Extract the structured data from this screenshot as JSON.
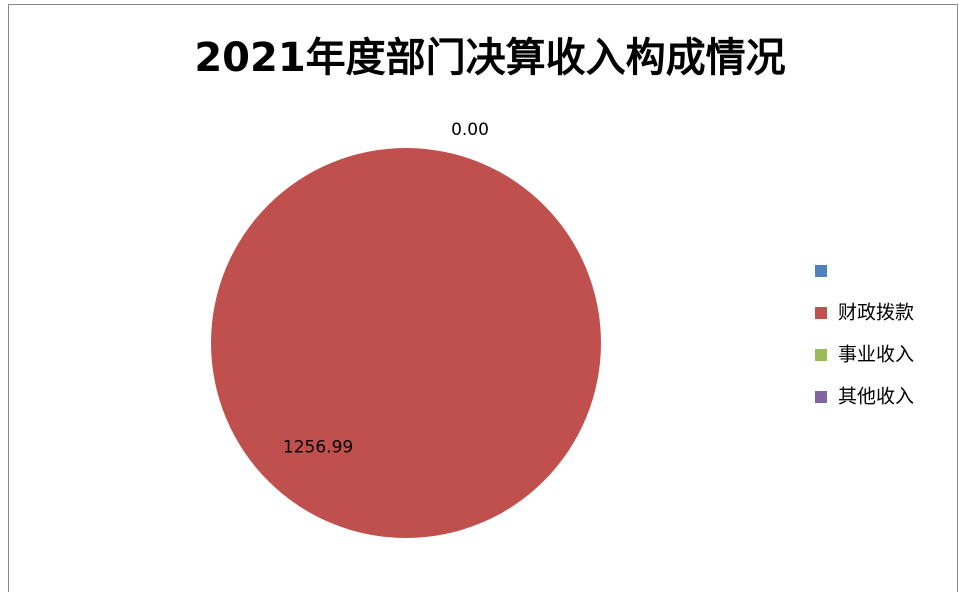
{
  "chart_data": {
    "type": "pie",
    "title": "2021年度部门决算收入构成情况",
    "categories": [
      null,
      "财政拨款",
      "事业收入",
      "其他收入"
    ],
    "values": [
      0,
      1256.99,
      0,
      0
    ],
    "value_labels": [
      null,
      "1256.99",
      "0.00",
      null
    ],
    "colors": [
      "#4f81bd",
      "#c0504d",
      "#9bbb59",
      "#8064a2"
    ],
    "legend": "right"
  }
}
